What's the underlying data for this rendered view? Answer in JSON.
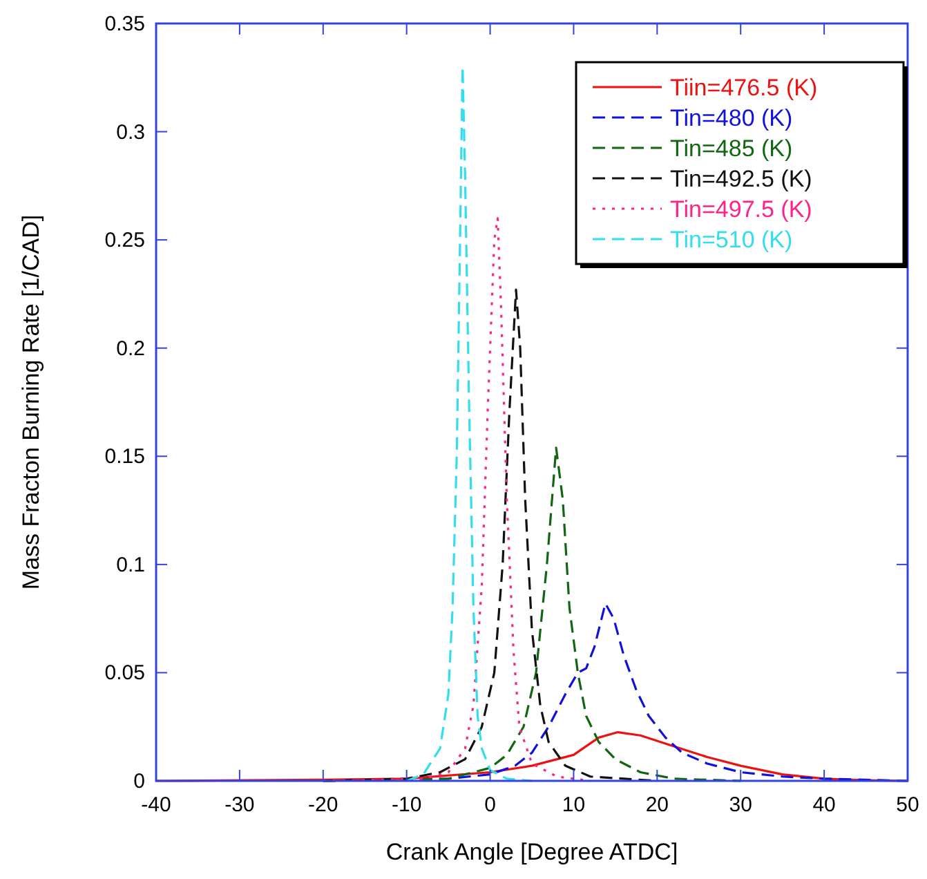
{
  "chart_data": {
    "type": "line",
    "xlabel": "Crank Angle [Degree ATDC]",
    "ylabel": "Mass Fracton Burning Rate [1/CAD]",
    "xlim": [
      -40,
      50
    ],
    "xticks": [
      -40,
      -30,
      -20,
      -10,
      0,
      10,
      20,
      30,
      40,
      50
    ],
    "ylim": [
      0,
      0.35
    ],
    "yticks": [
      0,
      0.05,
      0.1,
      0.15,
      0.2,
      0.25,
      0.3,
      0.35
    ],
    "grid": false,
    "legend": "top right",
    "series": [
      {
        "name": "Tiin=476.5 (K)",
        "color": "#ee1111",
        "line_style": "solid",
        "x": [
          -40,
          -20,
          -10,
          0,
          5,
          10,
          13,
          15.3,
          18,
          22,
          26,
          30,
          35,
          40,
          45,
          50
        ],
        "values": [
          0,
          0.0005,
          0.001,
          0.004,
          0.007,
          0.012,
          0.02,
          0.0225,
          0.021,
          0.016,
          0.011,
          0.007,
          0.003,
          0.001,
          0.0003,
          0
        ]
      },
      {
        "name": "Tin=480 (K)",
        "color": "#1111dd",
        "line_style": "dashed",
        "x": [
          -20,
          -5,
          0,
          3,
          5,
          7,
          9,
          10.5,
          11.5,
          12.5,
          13.8,
          14.8,
          16,
          17.5,
          19,
          21,
          23,
          26,
          30,
          35,
          40,
          50
        ],
        "values": [
          0,
          0.001,
          0.003,
          0.007,
          0.013,
          0.025,
          0.04,
          0.05,
          0.052,
          0.062,
          0.082,
          0.075,
          0.058,
          0.042,
          0.03,
          0.02,
          0.013,
          0.008,
          0.004,
          0.002,
          0.001,
          0
        ]
      },
      {
        "name": "Tin=485 (K)",
        "color": "#116611",
        "line_style": "dashed",
        "x": [
          -20,
          -5,
          0,
          2,
          4,
          5.5,
          6.8,
          7.9,
          8.7,
          9.5,
          10.5,
          11.5,
          13,
          15,
          18,
          22,
          30
        ],
        "values": [
          0,
          0.001,
          0.006,
          0.012,
          0.025,
          0.05,
          0.1,
          0.154,
          0.13,
          0.08,
          0.05,
          0.03,
          0.018,
          0.01,
          0.004,
          0.001,
          0
        ]
      },
      {
        "name": "Tin=492.5 (K)",
        "color": "#111111",
        "line_style": "dashed",
        "x": [
          -20,
          -10,
          -6,
          -3,
          -1,
          0.5,
          1.5,
          2.3,
          3.1,
          3.6,
          4.2,
          5,
          6,
          7,
          9,
          12,
          20
        ],
        "values": [
          0,
          0.001,
          0.004,
          0.01,
          0.025,
          0.05,
          0.1,
          0.17,
          0.227,
          0.2,
          0.13,
          0.07,
          0.035,
          0.018,
          0.007,
          0.002,
          0
        ]
      },
      {
        "name": "Tin=497.5 (K)",
        "color": "#ff2288",
        "line_style": "dotted",
        "x": [
          -20,
          -8,
          -5,
          -3,
          -2,
          -1,
          -0.3,
          0.5,
          0.9,
          1.3,
          2,
          2.8,
          3.5,
          5,
          8,
          12
        ],
        "values": [
          0,
          0.001,
          0.004,
          0.015,
          0.035,
          0.09,
          0.17,
          0.25,
          0.26,
          0.22,
          0.13,
          0.06,
          0.025,
          0.008,
          0.002,
          0
        ]
      },
      {
        "name": "Tin=510 (K)",
        "color": "#33ddee",
        "line_style": "dashed",
        "x": [
          -10,
          -8,
          -6,
          -5,
          -4.5,
          -4,
          -3.6,
          -3.3,
          -3,
          -2.5,
          -2,
          -1.5,
          -1,
          0,
          2,
          5
        ],
        "values": [
          0,
          0.003,
          0.015,
          0.04,
          0.08,
          0.15,
          0.25,
          0.33,
          0.28,
          0.17,
          0.08,
          0.03,
          0.015,
          0.005,
          0.001,
          0
        ]
      }
    ]
  }
}
